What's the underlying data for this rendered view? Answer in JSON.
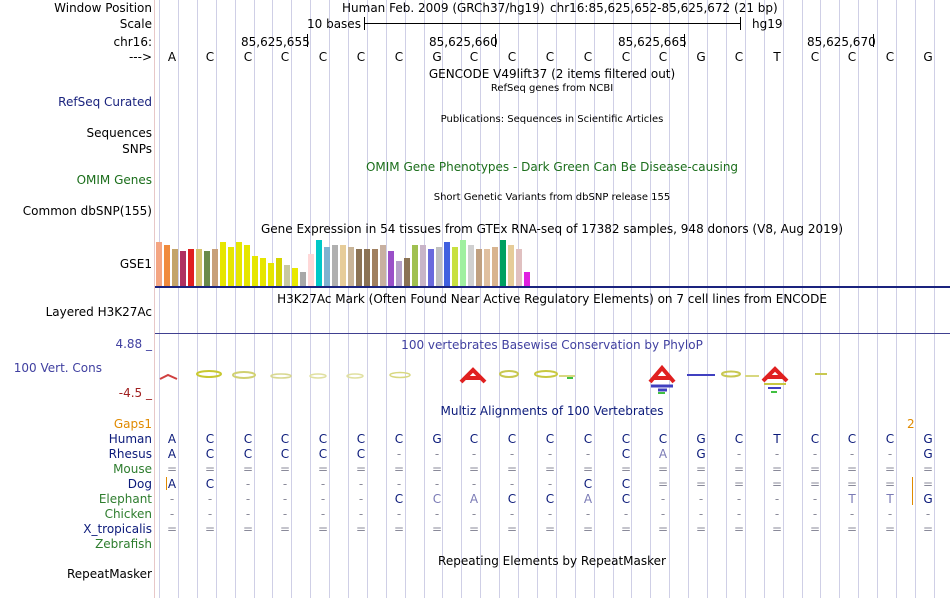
{
  "header": {
    "window_position_label": "Window Position",
    "scale_label": "Scale",
    "chrom_label": "chr16:",
    "strand_label": "--->",
    "assembly_text": "Human Feb. 2009 (GRCh37/hg19)",
    "position_text": "chr16:85,625,652-85,625,672 (21 bp)",
    "scale_bases": "10 bases",
    "scale_db": "hg19",
    "coords": [
      "85,625,655",
      "85,625,660",
      "85,625,665",
      "85,625,670"
    ]
  },
  "bases": [
    "A",
    "C",
    "C",
    "C",
    "C",
    "C",
    "C",
    "G",
    "C",
    "C",
    "C",
    "C",
    "C",
    "C",
    "G",
    "C",
    "T",
    "C",
    "C",
    "C",
    "G"
  ],
  "tracks": {
    "gencode_title": "GENCODE V49lift37 (2 items filtered out)",
    "refseq_subtitle": "RefSeq genes from NCBI",
    "refseq_label": "RefSeq Curated",
    "publications_title": "Publications: Sequences in Scientific Articles",
    "sequences_label": "Sequences",
    "snps_label": "SNPs",
    "omim_title": "OMIM Gene Phenotypes - Dark Green Can Be Disease-causing",
    "omim_label": "OMIM Genes",
    "dbsnp_title": "Short Genetic Variants from dbSNP release 155",
    "dbsnp_label": "Common dbSNP(155)",
    "gtex_title": "Gene Expression in 54 tissues from GTEx RNA-seq of 17382 samples, 948 donors (V8, Aug 2019)",
    "gtex_label": "GSE1",
    "h3k27ac_title": "H3K27Ac Mark (Often Found Near Active Regulatory Elements) on 7 cell lines from ENCODE",
    "h3k27ac_label": "Layered H3K27Ac",
    "phylop_title": "100 vertebrates Basewise Conservation by PhyloP",
    "phylop_label": "100 Vert. Cons",
    "phylop_max": "4.88 _",
    "phylop_min": "-4.5 _",
    "multiz_title": "Multiz Alignments of 100 Vertebrates",
    "gaps_label": "Gaps",
    "gaps_left": "1",
    "gaps_right": "2",
    "repeat_title": "Repeating Elements by RepeatMasker",
    "repeat_label": "RepeatMasker"
  },
  "colors": {
    "label_blue": "#1a237e",
    "omim_green": "#1b6e1b",
    "gaps_orange": "#e08a00",
    "phylop_blue": "#4040a0",
    "phylop_red": "#a02020",
    "species_navy": "#0b1a7a",
    "species_green": "#2e7d2e"
  },
  "gtex_colors": [
    "#f4a582",
    "#f08a3c",
    "#c4a46a",
    "#b03060",
    "#e02020",
    "#d4c26a",
    "#6a8a4a",
    "#c8a07a",
    "#e6e600",
    "#e6e600",
    "#e6e600",
    "#e6e600",
    "#e6e600",
    "#e6e600",
    "#e6e600",
    "#d4d400",
    "#c8c8a0",
    "#e8e800",
    "#a8a8a8",
    "#ffd8d8",
    "#00c8c8",
    "#7fb2d0",
    "#b0b0b0",
    "#e6cc99",
    "#c8b498",
    "#8b7355",
    "#8b7355",
    "#a08060",
    "#c8b0a0",
    "#9a50c8",
    "#b4a0c8",
    "#8b7355",
    "#a0c050",
    "#c8b4c8",
    "#6a6adc",
    "#c0c0c0",
    "#4060e0",
    "#c8e040",
    "#a0f0a0",
    "#d0d0d0",
    "#c0a080",
    "#e0c0a0",
    "#d8b490",
    "#00a060",
    "#e6cc99",
    "#e0c0c0",
    "#e020e0"
  ],
  "gtex_values": [
    0.95,
    0.9,
    0.8,
    0.75,
    0.8,
    0.8,
    0.75,
    0.8,
    0.95,
    0.85,
    0.95,
    0.9,
    0.65,
    0.6,
    0.5,
    0.6,
    0.45,
    0.4,
    0.3,
    0.7,
    1.0,
    0.85,
    0.9,
    0.9,
    0.85,
    0.8,
    0.8,
    0.8,
    0.9,
    0.75,
    0.55,
    0.6,
    0.9,
    0.9,
    0.8,
    0.85,
    0.95,
    0.85,
    1.0,
    0.9,
    0.8,
    0.8,
    0.85,
    1.0,
    0.9,
    0.8,
    0.3
  ],
  "multiz": {
    "species": [
      {
        "name": "Human",
        "row": [
          "A",
          "C",
          "C",
          "C",
          "C",
          "C",
          "C",
          "G",
          "C",
          "C",
          "C",
          "C",
          "C",
          "C",
          "G",
          "C",
          "T",
          "C",
          "C",
          "C",
          "G"
        ]
      },
      {
        "name": "Rhesus",
        "row": [
          "A",
          "C",
          "C",
          "C",
          "C",
          "C",
          "-",
          "-",
          "-",
          "-",
          "-",
          "-",
          "C",
          "A",
          "G",
          "-",
          "-",
          "-",
          "-",
          "-",
          "G"
        ]
      },
      {
        "name": "Mouse",
        "row": [
          "=",
          "=",
          "=",
          "=",
          "=",
          "=",
          "=",
          "=",
          "=",
          "=",
          "=",
          "=",
          "=",
          "=",
          "=",
          "=",
          "=",
          "=",
          "=",
          "=",
          "="
        ]
      },
      {
        "name": "Dog",
        "row": [
          "A",
          "C",
          "-",
          "-",
          "-",
          "-",
          "-",
          "-",
          "-",
          "-",
          "-",
          "C",
          "C",
          "=",
          "=",
          "=",
          "=",
          "=",
          "=",
          "=",
          "="
        ]
      },
      {
        "name": "Elephant",
        "row": [
          "-",
          "-",
          "-",
          "-",
          "-",
          "-",
          "C",
          "C",
          "A",
          "C",
          "C",
          "A",
          "C",
          "-",
          "-",
          "-",
          "-",
          "-",
          "T",
          "T",
          "G"
        ]
      },
      {
        "name": "Chicken",
        "row": [
          "-",
          "-",
          "-",
          "-",
          "-",
          "-",
          "-",
          "-",
          "-",
          "-",
          "-",
          "-",
          "-",
          "-",
          "-",
          "-",
          "-",
          "-",
          "-",
          "-",
          "-"
        ]
      },
      {
        "name": "X_tropicalis",
        "row": [
          "=",
          "=",
          "=",
          "=",
          "=",
          "=",
          "=",
          "=",
          "=",
          "=",
          "=",
          "=",
          "=",
          "=",
          "=",
          "=",
          "=",
          "=",
          "=",
          "=",
          "="
        ]
      },
      {
        "name": "Zebrafish",
        "row": [
          "",
          "",
          "",
          "",
          "",
          "",
          "",
          "",
          "",
          "",
          "",
          "",
          "",
          "",
          "",
          "",
          "",
          "",
          "",
          "",
          ""
        ]
      }
    ]
  }
}
